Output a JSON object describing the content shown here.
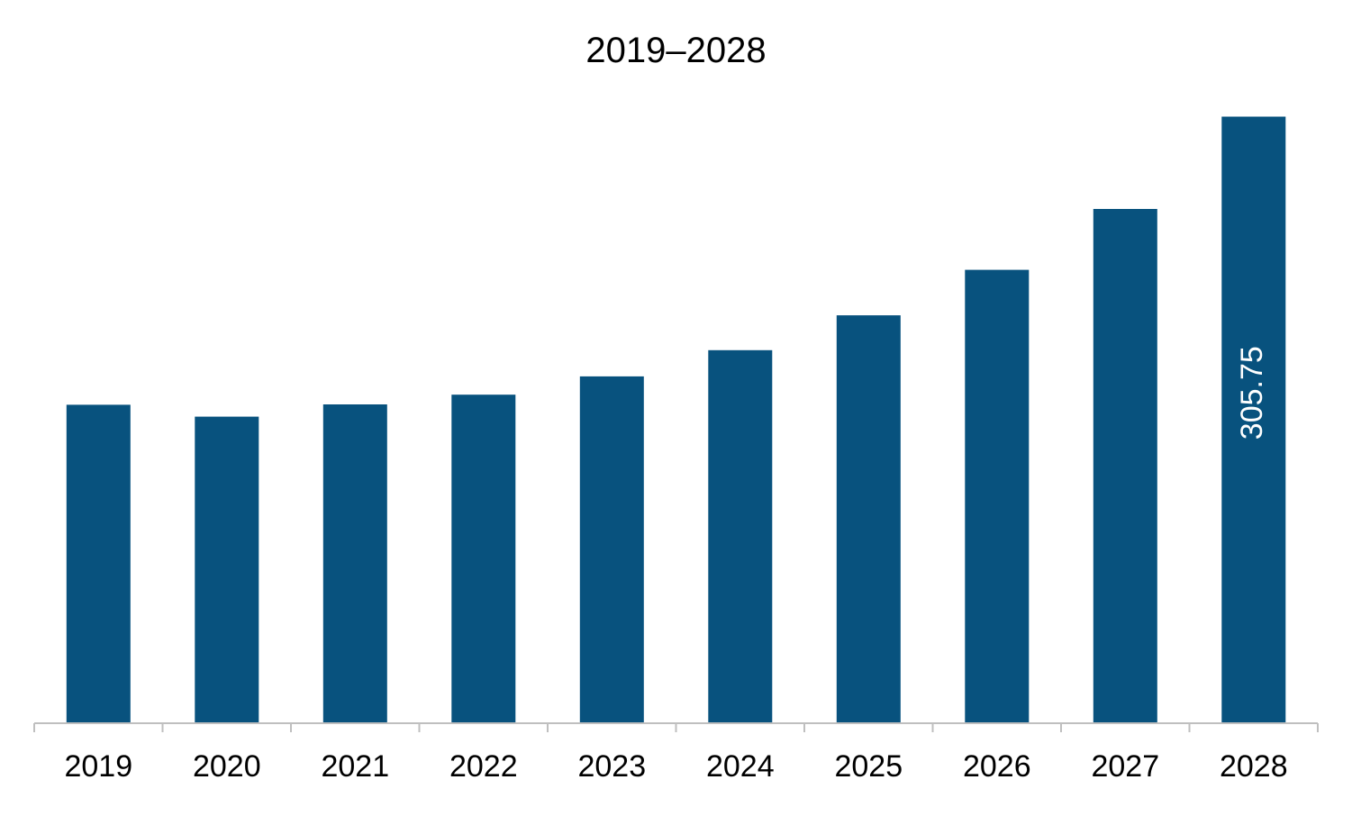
{
  "chart_data": {
    "type": "bar",
    "title": "2019–2028",
    "xlabel": "",
    "ylabel": "",
    "categories": [
      "2019",
      "2020",
      "2021",
      "2022",
      "2023",
      "2024",
      "2025",
      "2026",
      "2027",
      "2028"
    ],
    "values": [
      160.5,
      154.5,
      160.7,
      165.6,
      174.8,
      188.0,
      205.6,
      228.5,
      259.2,
      305.75
    ],
    "data_labels": [
      "",
      "",
      "",
      "",
      "",
      "",
      "",
      "",
      "",
      "305.75"
    ],
    "ylim": [
      0,
      340
    ],
    "grid": false,
    "legend": "none",
    "colors": {
      "bar": "#08527E",
      "axis": "#BFBFBF",
      "label_inside": "#FFFFFF",
      "text": "#000000"
    }
  }
}
